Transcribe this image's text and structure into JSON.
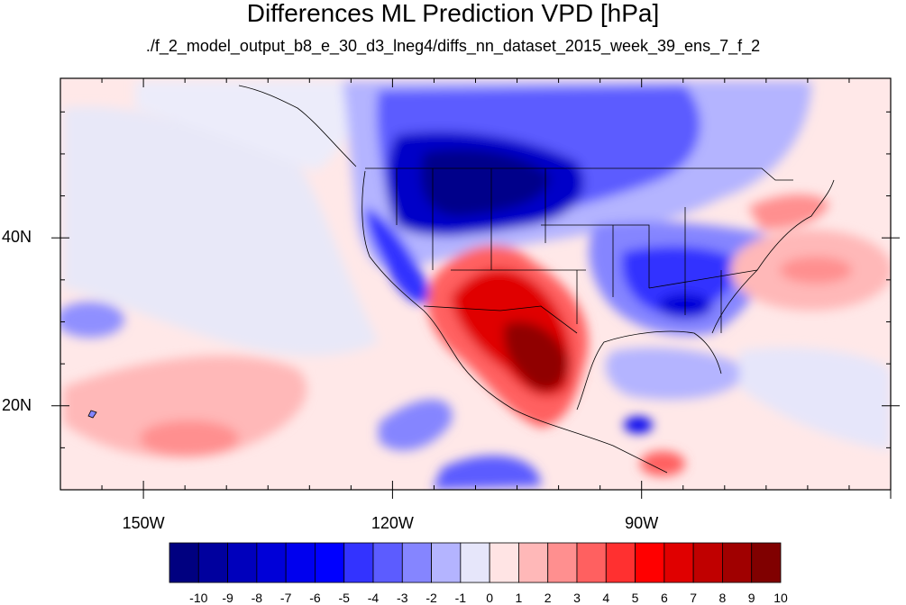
{
  "title": "Differences ML Prediction VPD [hPa]",
  "subtitle": "./f_2_model_output_b8_e_30_d3_lneg4/diffs_nn_dataset_2015_week_39_ens_7_f_2",
  "map": {
    "lon_range": [
      -160,
      -60
    ],
    "lat_range": [
      10,
      59
    ],
    "lon_ticks": [
      {
        "value": -150,
        "label": "150W"
      },
      {
        "value": -120,
        "label": "120W"
      },
      {
        "value": -90,
        "label": "90W"
      }
    ],
    "lat_ticks": [
      {
        "value": 40,
        "label": "40N"
      },
      {
        "value": 20,
        "label": "20N"
      }
    ]
  },
  "colorbar": {
    "labels": [
      "-10",
      "-9",
      "-8",
      "-7",
      "-6",
      "-5",
      "-4",
      "-3",
      "-2",
      "-1",
      "0",
      "1",
      "2",
      "3",
      "4",
      "5",
      "6",
      "7",
      "8",
      "9",
      "10"
    ],
    "colors": [
      "#000080",
      "#00009e",
      "#0000bc",
      "#0000d8",
      "#0000ee",
      "#0000ff",
      "#3333ff",
      "#5c5cff",
      "#8585ff",
      "#b4b4ff",
      "#e6e6fa",
      "#ffe4e4",
      "#ffb8b8",
      "#ff8f8f",
      "#ff6060",
      "#ff3030",
      "#ff0000",
      "#e00000",
      "#c00000",
      "#a00000",
      "#800000"
    ]
  },
  "features": [
    {
      "name": "northern-plains-negative",
      "value": -8
    },
    {
      "name": "northwest-negative",
      "value": -5
    },
    {
      "name": "southwest-mexico-positive",
      "value": 9
    },
    {
      "name": "southeast-us-negative",
      "value": -5
    },
    {
      "name": "eastern-pacific-positive",
      "value": 2
    },
    {
      "name": "atlantic-positive",
      "value": 3
    },
    {
      "name": "eastern-pacific-south-negative",
      "value": -3
    }
  ]
}
